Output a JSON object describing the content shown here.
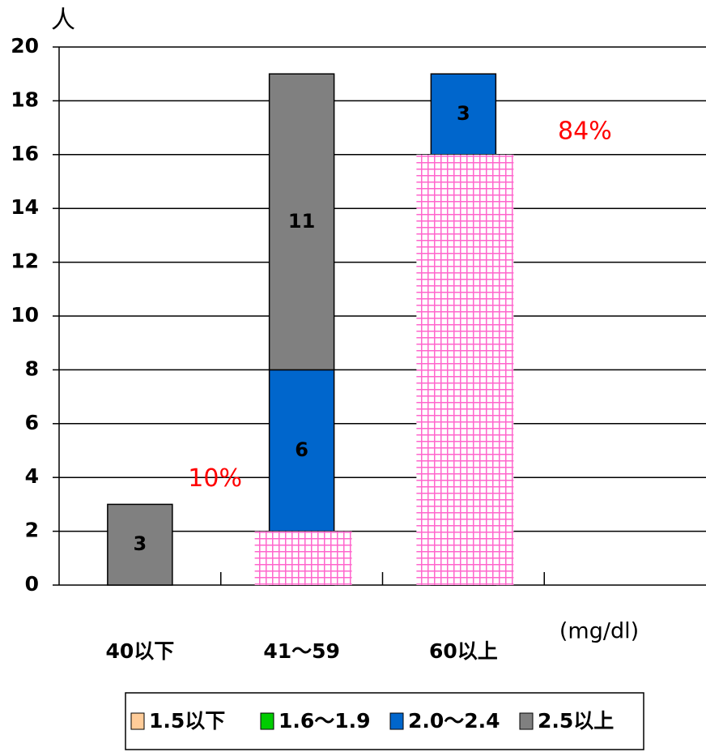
{
  "chart_data": {
    "type": "stacked_bar",
    "y_label": "人",
    "x_label": "(mg/dl)",
    "categories": [
      "40以下",
      "41～59",
      "60以上",
      null
    ],
    "series": [
      {
        "name": "1.5以下",
        "color": "#ffcc99",
        "values": [
          0,
          0,
          0,
          null
        ]
      },
      {
        "name": "1.6～1.9",
        "color": "#00cc00",
        "values": [
          0,
          2,
          16,
          null
        ]
      },
      {
        "name": "2.0～2.4",
        "color": "#0066cc",
        "values": [
          0,
          6,
          3,
          null
        ]
      },
      {
        "name": "2.5以上",
        "color": "#808080",
        "values": [
          3,
          11,
          0,
          null
        ]
      }
    ],
    "annotations": [
      {
        "text": "10%",
        "category": 1
      },
      {
        "text": "84%",
        "category": 2
      }
    ],
    "highlight_color": "#ff66cc",
    "ylim": [
      0,
      20
    ],
    "yticks": [
      0,
      2,
      4,
      6,
      8,
      10,
      12,
      14,
      16,
      18,
      20
    ],
    "grid": true
  }
}
